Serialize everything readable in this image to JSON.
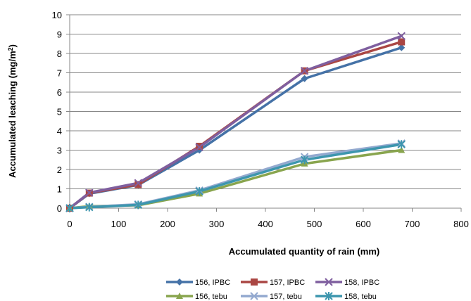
{
  "chart_data": {
    "type": "line",
    "title": "",
    "xlabel": "Accumulated quantity of rain (mm)",
    "ylabel_main": "Accumulated leaching (mg/m",
    "ylabel_sup": "2",
    "ylabel_end": ")",
    "xlim": [
      0,
      800
    ],
    "ylim": [
      0,
      10
    ],
    "xticks": [
      0,
      100,
      200,
      300,
      400,
      500,
      600,
      700,
      800
    ],
    "yticks": [
      0,
      1,
      2,
      3,
      4,
      5,
      6,
      7,
      8,
      9,
      10
    ],
    "grid": "horizontal",
    "legend_position": "bottom",
    "x": [
      0,
      40,
      140,
      265,
      480,
      678
    ],
    "series": [
      {
        "name": "156, IPBC",
        "color": "#4572A7",
        "marker": "diamond",
        "values": [
          0,
          0.75,
          1.2,
          3.0,
          6.7,
          8.3
        ]
      },
      {
        "name": "157, IPBC",
        "color": "#AA4643",
        "marker": "square",
        "values": [
          0,
          0.78,
          1.22,
          3.2,
          7.1,
          8.6
        ]
      },
      {
        "name": "158, IPBC",
        "color": "#7F5F9F",
        "marker": "x",
        "values": [
          0,
          0.8,
          1.3,
          3.15,
          7.1,
          8.9
        ]
      },
      {
        "name": "156, tebu",
        "color": "#89A54E",
        "marker": "triangle",
        "values": [
          0,
          0.1,
          0.15,
          0.75,
          2.3,
          3.0
        ]
      },
      {
        "name": "157, tebu",
        "color": "#93A9CF",
        "marker": "x",
        "values": [
          0,
          0.07,
          0.2,
          0.92,
          2.65,
          3.35
        ]
      },
      {
        "name": "158, tebu",
        "color": "#3D96AE",
        "marker": "star",
        "values": [
          0,
          0.05,
          0.17,
          0.87,
          2.5,
          3.3
        ]
      }
    ]
  }
}
